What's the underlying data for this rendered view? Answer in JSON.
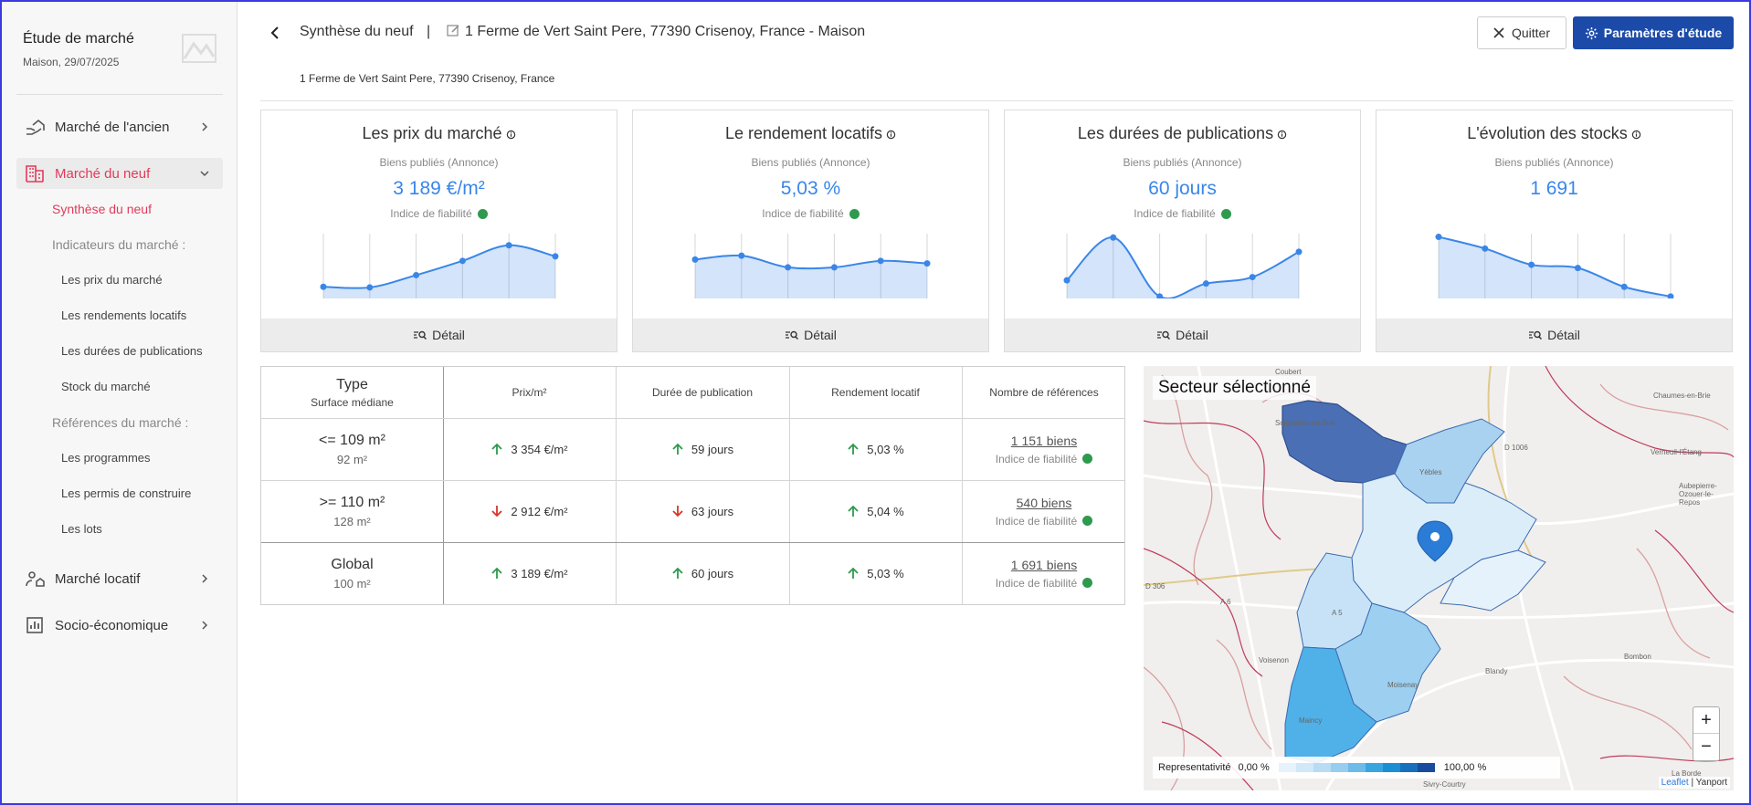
{
  "study": {
    "title": "Étude de marché",
    "subtitle": "Maison, 29/07/2025"
  },
  "sidebar": {
    "items": [
      {
        "label": "Marché de l'ancien",
        "icon": "house-hand-icon"
      },
      {
        "label": "Marché du neuf",
        "icon": "building-icon"
      },
      {
        "label": "Marché locatif",
        "icon": "person-house-icon"
      },
      {
        "label": "Socio-économique",
        "icon": "bar-chart-icon"
      }
    ],
    "sub": {
      "synthese": "Synthèse du neuf",
      "indicateurs": "Indicateurs du marché :",
      "prix": "Les prix du marché",
      "rendements": "Les rendements locatifs",
      "durees": "Les durées de publications",
      "stock": "Stock du marché",
      "references": "Références du marché :",
      "programmes": "Les programmes",
      "permis": "Les permis de construire",
      "lots": "Les lots"
    }
  },
  "header": {
    "title": "Synthèse du neuf",
    "separator": "|",
    "address": "1 Ferme de Vert Saint Pere, 77390 Crisenoy, France - Maison",
    "sub_address": "1 Ferme de Vert Saint Pere, 77390 Crisenoy, France",
    "quit_label": "Quitter",
    "params_label": "Paramètres d'étude"
  },
  "cards": [
    {
      "title": "Les prix du marché",
      "subtitle": "Biens publiés (Annonce)",
      "value": "3 189 €/m²",
      "reliability": "Indice de fiabilité",
      "detail": "Détail"
    },
    {
      "title": "Le rendement locatifs",
      "subtitle": "Biens publiés (Annonce)",
      "value": "5,03 %",
      "reliability": "Indice de fiabilité",
      "detail": "Détail"
    },
    {
      "title": "Les durées de publications",
      "subtitle": "Biens publiés (Annonce)",
      "value": "60 jours",
      "reliability": "Indice de fiabilité",
      "detail": "Détail"
    },
    {
      "title": "L'évolution des stocks",
      "subtitle": "Biens publiés (Annonce)",
      "value": "1 691",
      "reliability": "",
      "detail": "Détail"
    }
  ],
  "chart_data": [
    {
      "type": "area",
      "series": [
        {
          "values": [
            0.18,
            0.17,
            0.36,
            0.58,
            0.82,
            0.65
          ]
        }
      ],
      "ylim": [
        0,
        1
      ]
    },
    {
      "type": "area",
      "series": [
        {
          "values": [
            0.6,
            0.66,
            0.48,
            0.48,
            0.58,
            0.54
          ]
        }
      ],
      "ylim": [
        0,
        1
      ]
    },
    {
      "type": "area",
      "series": [
        {
          "values": [
            0.28,
            0.94,
            0.03,
            0.23,
            0.33,
            0.72
          ]
        }
      ],
      "ylim": [
        0,
        1
      ]
    },
    {
      "type": "area",
      "series": [
        {
          "values": [
            0.95,
            0.77,
            0.52,
            0.47,
            0.18,
            0.03
          ]
        }
      ],
      "ylim": [
        0,
        1
      ]
    }
  ],
  "table": {
    "headers": {
      "type": "Type",
      "type_sub": "Surface médiane",
      "prix": "Prix/m²",
      "duree": "Durée de publication",
      "rendement": "Rendement locatif",
      "refs": "Nombre de références"
    },
    "rows": [
      {
        "type": "<= 109 m²",
        "surface": "92 m²",
        "prix": "3 354 €/m²",
        "prix_trend": "up",
        "duree": "59 jours",
        "duree_trend": "up",
        "rendement": "5,03 %",
        "rendement_trend": "up",
        "refs": "1 151 biens",
        "reliability": "Indice de fiabilité"
      },
      {
        "type": ">= 110 m²",
        "surface": "128 m²",
        "prix": "2 912 €/m²",
        "prix_trend": "down",
        "duree": "63 jours",
        "duree_trend": "down",
        "rendement": "5,04 %",
        "rendement_trend": "up",
        "refs": "540 biens",
        "reliability": "Indice de fiabilité"
      },
      {
        "type": "Global",
        "surface": "100 m²",
        "prix": "3 189 €/m²",
        "prix_trend": "up",
        "duree": "60 jours",
        "duree_trend": "up",
        "rendement": "5,03 %",
        "rendement_trend": "up",
        "refs": "1 691 biens",
        "reliability": "Indice de fiabilité"
      }
    ]
  },
  "map": {
    "title": "Secteur sélectionné",
    "legend_label": "Representativité",
    "legend_min": "0,00 %",
    "legend_max": "100,00 %",
    "attribution_link": "Leaflet",
    "attribution_sep": "|",
    "attribution_text": "Yanport",
    "zoom_in": "+",
    "zoom_out": "−",
    "labels": [
      "Coubert",
      "Soignolles-en-Brie",
      "Chaumes-en-Brie",
      "D 1006",
      "Verneuil-l'Étang",
      "Yèbles",
      "Aubepierre-Ozouer-le-Repos",
      "Voisenon",
      "Blandy",
      "Bombon",
      "Moisenay",
      "Maincy",
      "Sivry-Courtry",
      "La Borde",
      "A 5",
      "A 6",
      "D 306"
    ]
  },
  "colors": {
    "accent": "#e23a5a",
    "primary": "#1c4aa8",
    "value": "#3a86e8",
    "up": "#2e9a4e",
    "down": "#d9342b",
    "reliable": "#2e9a4e"
  }
}
